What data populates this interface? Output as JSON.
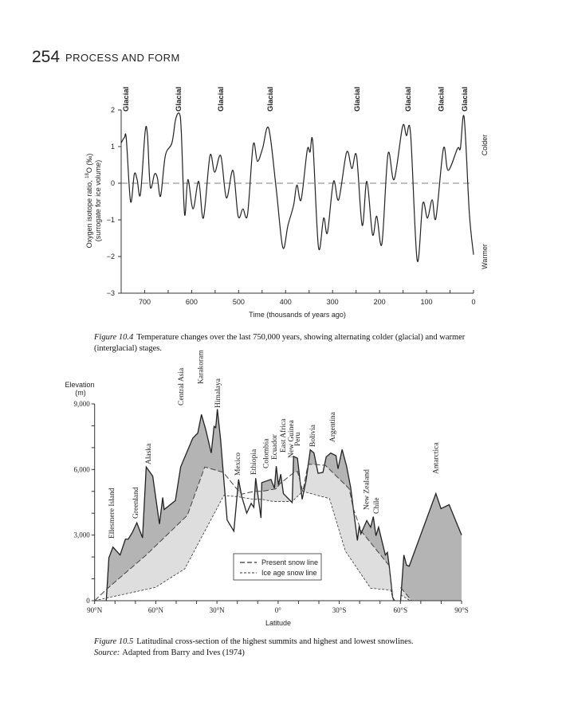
{
  "page": {
    "number": "254",
    "running_head": "PROCESS AND FORM"
  },
  "figure1": {
    "caption_label": "Figure 10.4",
    "caption_line1": "Temperature changes over the last 750,000 years, showing alternating colder (glacial) and warmer",
    "caption_line2": "(interglacial) stages."
  },
  "figure2": {
    "caption_label": "Figure 10.5",
    "caption_text": "Latitudinal cross-section of the highest summits and highest and lowest snowlines.",
    "source_label": "Source:",
    "source_text": "Adapted from Barry and Ives (1974)"
  },
  "chart_data": [
    {
      "type": "line",
      "xlabel": "Time (thousands of years ago)",
      "ylabel_line1": "Oxygen isotope ratio, ",
      "ylabel_sup": "18",
      "ylabel_line1b": "O (‰)",
      "ylabel_line2": "(surrogate for ice volume)",
      "xlim": [
        750,
        0
      ],
      "ylim": [
        -3,
        2
      ],
      "x_ticks": [
        700,
        600,
        500,
        400,
        300,
        200,
        100,
        0
      ],
      "y_ticks": [
        2,
        1,
        0,
        -1,
        -2,
        -3
      ],
      "x_tick_labels": [
        "700",
        "600",
        "500",
        "400",
        "300",
        "200",
        "100",
        "0"
      ],
      "y_tick_labels": [
        "2",
        "1",
        "0",
        "−1",
        "−2",
        "−3"
      ],
      "reference_line": {
        "y": 0,
        "style": "dashed"
      },
      "right_labels": {
        "top": "Colder",
        "bottom": "Warmer"
      },
      "annotations": [
        {
          "text": "Glacial",
          "x": 740
        },
        {
          "text": "Glacial",
          "x": 628
        },
        {
          "text": "Glacial",
          "x": 538
        },
        {
          "text": "Glacial",
          "x": 433
        },
        {
          "text": "Glacial",
          "x": 248
        },
        {
          "text": "Glacial",
          "x": 139
        },
        {
          "text": "Glacial",
          "x": 69
        },
        {
          "text": "Glacial",
          "x": 19
        }
      ],
      "x": [
        750,
        743,
        739,
        730,
        722,
        716,
        709,
        699,
        694,
        688,
        679,
        673,
        666,
        656,
        642,
        634,
        626,
        622,
        615,
        608,
        597,
        585,
        575,
        561,
        551,
        538,
        526,
        512,
        501,
        491,
        481,
        469,
        460,
        449,
        436,
        420,
        406,
        395,
        383,
        376,
        367,
        354,
        348,
        342,
        330,
        319,
        311,
        298,
        287,
        270,
        259,
        249,
        237,
        227,
        215,
        206,
        195,
        182,
        169,
        151,
        143,
        134,
        120,
        108,
        98,
        88,
        80,
        64,
        54,
        34,
        28,
        20,
        9,
        0
      ],
      "y": [
        1.1,
        1.25,
        1.2,
        -0.5,
        0.25,
        0.1,
        -0.3,
        1.4,
        1.3,
        -0.1,
        0.25,
        0.15,
        -0.35,
        0.75,
        1.1,
        1.75,
        1.9,
        1.4,
        -0.85,
        0.1,
        -0.7,
        0.05,
        -0.95,
        0.75,
        0.3,
        0.75,
        -0.4,
        0.35,
        -0.9,
        -0.7,
        -0.85,
        1.05,
        0.6,
        0.95,
        1.5,
        -0.15,
        -1.75,
        -1.15,
        -0.6,
        -0.05,
        -0.45,
        0.9,
        0.85,
        1.1,
        -1.75,
        -0.95,
        -1.35,
        0.05,
        -0.45,
        0.85,
        0.4,
        0.75,
        -1.15,
        0.05,
        -1.4,
        -0.9,
        -1.65,
        0.8,
        0.1,
        1.55,
        1.3,
        1.35,
        -2.1,
        -0.55,
        -0.95,
        -0.45,
        -0.95,
        0.95,
        0.35,
        0.95,
        0.95,
        1.8,
        -0.8,
        -1.95
      ],
      "line_color": "#222222"
    },
    {
      "type": "area",
      "xlabel": "Latitude",
      "ylabel_line1": "Elevation",
      "ylabel_line2": "(m)",
      "xlim": [
        90,
        -90
      ],
      "ylim": [
        0,
        9000
      ],
      "x_tick_labels": [
        "90°N",
        "60°N",
        "30°N",
        "0°",
        "30°S",
        "60°S",
        "90°S"
      ],
      "x_ticks": [
        90,
        60,
        30,
        0,
        -30,
        -60,
        -90
      ],
      "y_tick_labels": [
        "0",
        "3,000",
        "6,000",
        "9,000"
      ],
      "y_ticks": [
        0,
        3000,
        6000,
        9000
      ],
      "legend": {
        "placement": "bottom-center",
        "entries": [
          "Present snow line",
          "Ice age snow line"
        ]
      },
      "colors": {
        "summit_fill": "#b4b4b4",
        "snowline_band_fill": "#dedede"
      },
      "series": [
        {
          "name": "Highest summits",
          "segments": [
            {
              "lat": [
                84.3,
                83,
                81,
                77.5,
                74.9,
                73.5,
                71.5,
                69.3,
                66.5,
                64.7,
                61.5,
                58.2,
                56.6,
                55.9,
                50.4,
                47.8,
                41.9,
                39.4,
                37.6,
                35.4,
                32.8,
                31.4,
                30.6,
                29.8,
                28.2,
                26.9,
                25,
                21.7,
                19.4,
                17.8,
                15.4,
                13.2,
                11.9,
                11,
                8.4,
                8,
                3.5,
                1.8,
                0.9,
                -0.2,
                -1.3,
                -2.6,
                -6.9,
                -7.6,
                -9.5,
                -11.8,
                -13.7,
                -15.8,
                -17.6,
                -19.6,
                -22,
                -23.6,
                -25.8,
                -28.4,
                -29.4,
                -31.4,
                -33.6,
                -35.6,
                -36.9,
                -38.9,
                -39.8,
                -40.6,
                -43.5,
                -45.4,
                -46.7,
                -48,
                -49.3,
                -52.6,
                -53.6,
                -54.5,
                -56.2,
                -57.1
              ],
              "elev": [
                0,
                1965,
                2450,
                2090,
                2815,
                2815,
                3120,
                3565,
                2875,
                6115,
                5700,
                3505,
                4720,
                4170,
                4575,
                6115,
                7425,
                7665,
                8515,
                7790,
                6755,
                7970,
                7910,
                8760,
                7365,
                5850,
                3690,
                3180,
                5545,
                4755,
                4005,
                4450,
                4270,
                5605,
                3785,
                5400,
                5545,
                5145,
                6150,
                5300,
                5785,
                4900,
                4490,
                6600,
                6515,
                4635,
                5485,
                6900,
                6755,
                5825,
                5870,
                6575,
                6755,
                6635,
                6030,
                6915,
                6150,
                5180,
                4210,
                2755,
                3420,
                3055,
                3665,
                3360,
                3845,
                2970,
                3360,
                2090,
                2210,
                1600,
                145,
                0
              ]
            },
            {
              "lat": [
                -60.1,
                -61.7,
                -63,
                -64.3,
                -77.4,
                -79.9,
                -83.9,
                -90
              ],
              "elev": [
                0,
                2090,
                1625,
                1575,
                4900,
                4210,
                4390,
                3000
              ]
            }
          ]
        },
        {
          "name": "Present snow line",
          "segments": [
            {
              "lat": [
                90,
                84.3,
                64.7,
                44.5,
                36,
                26.9,
                19.8,
                17.8,
                11.8,
                8,
                0.9,
                -1,
                -7.6,
                -9.5,
                -12.1,
                -14.7,
                -18,
                -23.2,
                -34.9,
                -36.9,
                -40.8,
                -54.5,
                -56.2
              ],
              "elev": [
                0,
                510,
                2090,
                3905,
                6115,
                5870,
                5060,
                4875,
                5000,
                5000,
                5120,
                5360,
                5850,
                5910,
                5000,
                6235,
                6235,
                6190,
                5120,
                4210,
                3180,
                1600,
                145
              ]
            },
            {
              "lat": [
                -60.1,
                -65.5
              ],
              "elev": [
                605,
                0
              ]
            }
          ]
        },
        {
          "name": "Ice age snow line",
          "segments": [
            {
              "lat": [
                90,
                84.3,
                60.2,
                45.8,
                26.6,
                19.8,
                11.8,
                8,
                2.2,
                -6.9,
                -12.1,
                -25.2,
                -33,
                -45.4,
                -55.2,
                -56.2
              ],
              "elev": [
                0,
                120,
                605,
                1455,
                4815,
                4755,
                4635,
                4635,
                4535,
                4535,
                5000,
                4670,
                2270,
                570,
                485,
                145
              ]
            },
            {
              "lat": [
                -60.1,
                -64.8
              ],
              "elev": [
                265,
                0
              ]
            }
          ]
        }
      ],
      "annotations": [
        {
          "text": "Ellesmere Island",
          "lat": 81.7
        },
        {
          "text": "Greenland",
          "lat": 69.9
        },
        {
          "text": "Alaska",
          "lat": 63.7
        },
        {
          "text": "Central Asia",
          "lat": 47.7
        },
        {
          "text": "Karakoram",
          "lat": 38
        },
        {
          "text": "Himalaya",
          "lat": 29.7
        },
        {
          "text": "Mexico",
          "lat": 19.8
        },
        {
          "text": "Ethiopia",
          "lat": 12
        },
        {
          "text": "Colombia",
          "lat": 6.1
        },
        {
          "text": "Ecuador",
          "lat": 1.9
        },
        {
          "text": "East Africa",
          "lat": -2.5
        },
        {
          "text": "New Guinea",
          "lat": -6.4
        },
        {
          "text": "Peru",
          "lat": -9.5
        },
        {
          "text": "Bolivia",
          "lat": -16.8
        },
        {
          "text": "Argentina",
          "lat": -26.6
        },
        {
          "text": "New Zealand",
          "lat": -43.2
        },
        {
          "text": "Chile",
          "lat": -48.2
        },
        {
          "text": "Antarctica",
          "lat": -77.2
        }
      ]
    }
  ]
}
